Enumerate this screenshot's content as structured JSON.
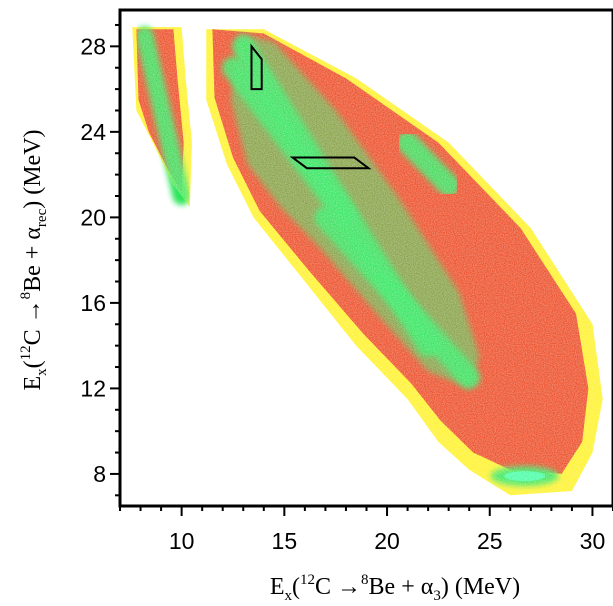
{
  "chart_data": {
    "type": "heatmap",
    "title": "",
    "xlim": [
      7,
      31
    ],
    "ylim": [
      6.5,
      29.7
    ],
    "x_ticks": [
      10,
      15,
      20,
      25,
      30
    ],
    "x_tick_labels": [
      "10",
      "15",
      "20",
      "25",
      "30"
    ],
    "y_ticks": [
      8,
      12,
      16,
      20,
      24,
      28
    ],
    "y_tick_labels": [
      "8",
      "12",
      "16",
      "20",
      "24",
      "28"
    ],
    "xlabel": {
      "prefix": "E",
      "sub": "x",
      "open": "(",
      "sup_mass": "12",
      "nucleus1": "C ",
      "arrow": "→",
      "sup_mass2": "8",
      "rest": "Be + α",
      "sub2": "3",
      "close": ") (MeV)"
    },
    "ylabel": {
      "prefix": "E",
      "sub": "x",
      "open": "(",
      "sup_mass": "12",
      "nucleus1": "C ",
      "arrow": "→",
      "sup_mass2": "8",
      "rest": "Be + α",
      "sub2": "rec",
      "close": ") (MeV)"
    },
    "grid": false,
    "legend": "none",
    "colors": {
      "low": "#ffef00",
      "mid": "#e8200a",
      "high": "#19e34a",
      "peak": "#2fffa0",
      "gate": "#000000"
    },
    "regions": [
      {
        "kind": "main-band",
        "x_center": 18.5,
        "y_center": 18.0,
        "level": "low"
      },
      {
        "kind": "ridge",
        "from": [
          13,
          28
        ],
        "to": [
          22,
          14
        ],
        "level": "high"
      },
      {
        "kind": "ridge",
        "from": [
          12.5,
          27
        ],
        "to": [
          18,
          20
        ],
        "level": "high"
      },
      {
        "kind": "ridge",
        "from": [
          17,
          20
        ],
        "to": [
          24,
          12.5
        ],
        "level": "high"
      },
      {
        "kind": "ridge",
        "from": [
          21,
          23.5
        ],
        "to": [
          23,
          21.5
        ],
        "level": "high"
      },
      {
        "kind": "ridge",
        "from": [
          23.5,
          9.9
        ],
        "to": [
          28.8,
          9.9
        ],
        "level": "high"
      },
      {
        "kind": "ridge",
        "from": [
          25.0,
          10.8
        ],
        "to": [
          28.5,
          10.8
        ],
        "level": "mid"
      },
      {
        "kind": "island",
        "x_center": 26.7,
        "y_center": 7.9,
        "level": "high"
      },
      {
        "kind": "left-band",
        "from": [
          8.2,
          28.5
        ],
        "to": [
          10,
          21
        ],
        "level": "high"
      }
    ],
    "gates": [
      {
        "name": "",
        "points": [
          [
            13.4,
            28.0
          ],
          [
            13.9,
            27.4
          ],
          [
            13.9,
            26.0
          ],
          [
            13.4,
            26.0
          ]
        ]
      },
      {
        "name": "",
        "points": [
          [
            15.4,
            22.8
          ],
          [
            18.4,
            22.8
          ],
          [
            19.1,
            22.3
          ],
          [
            16.1,
            22.3
          ]
        ]
      }
    ]
  }
}
